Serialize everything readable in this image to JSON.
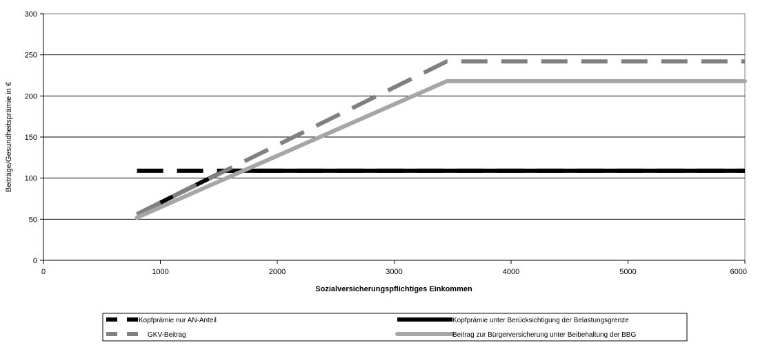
{
  "chart_data": {
    "type": "line",
    "title": "",
    "xlabel": "Sozialversicherungspflichtiges Einkommen",
    "ylabel": "Beiträge/Gesundheitsprämie in €",
    "xlim": [
      0,
      6000
    ],
    "ylim": [
      0,
      300
    ],
    "xticks": [
      0,
      1000,
      2000,
      3000,
      4000,
      5000,
      6000
    ],
    "yticks": [
      0,
      50,
      100,
      150,
      200,
      250,
      300
    ],
    "xtick_labels": [
      "0",
      "1000",
      "2000",
      "3000",
      "4000",
      "5000",
      "6000"
    ],
    "ytick_labels": [
      "0",
      "50",
      "100",
      "150",
      "200",
      "250",
      "300"
    ],
    "grid": "horizontal",
    "legend_position": "bottom",
    "series": [
      {
        "name": "Kopfprämie nur AN-Anteil",
        "color": "#000000",
        "style": "dashed",
        "x": [
          800,
          6000
        ],
        "y": [
          109,
          109
        ]
      },
      {
        "name": "Kopfprämie unter Berücksichtigung der Belastungsgrenze",
        "color": "#000000",
        "style": "solid",
        "x": [
          800,
          1550,
          6000
        ],
        "y": [
          56,
          109,
          109
        ]
      },
      {
        "name": "GKV-Beitrag",
        "color": "#808080",
        "style": "dashed",
        "x": [
          800,
          3450,
          6000
        ],
        "y": [
          56,
          242,
          242
        ]
      },
      {
        "name": "Beitrag zur Bürgerversicherung unter Beibehaltung der BBG",
        "color": "#a6a6a6",
        "style": "solid",
        "x": [
          800,
          3450,
          6000
        ],
        "y": [
          52,
          218,
          218
        ]
      }
    ]
  }
}
